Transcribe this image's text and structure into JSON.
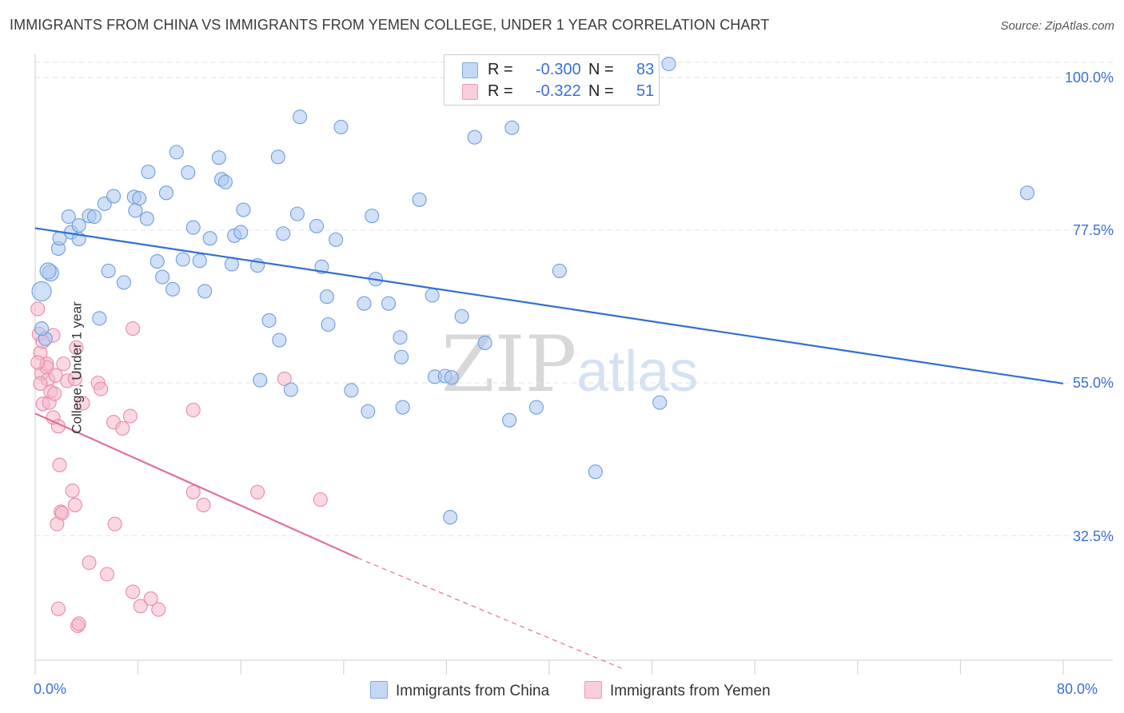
{
  "title": "IMMIGRANTS FROM CHINA VS IMMIGRANTS FROM YEMEN COLLEGE, UNDER 1 YEAR CORRELATION CHART",
  "source": "Source: ZipAtlas.com",
  "watermark": {
    "zip": "ZIP",
    "atlas": "atlas"
  },
  "legend": {
    "china": {
      "r_label": "R =",
      "r_value": "-0.300",
      "n_label": "N =",
      "n_value": "83"
    },
    "yemen": {
      "r_label": "R =",
      "r_value": "-0.322",
      "n_label": "N =",
      "n_value": "51"
    }
  },
  "colors": {
    "china": "#a9c6ee",
    "china_line": "#2f6fd3",
    "yemen": "#f4b8c9",
    "yemen_line": "#e0709a",
    "tick_text": "#3a6fd8"
  },
  "chart_data": {
    "type": "scatter",
    "title": "IMMIGRANTS FROM CHINA VS IMMIGRANTS FROM YEMEN COLLEGE, UNDER 1 YEAR CORRELATION CHART",
    "xlabel": "",
    "ylabel": "College, Under 1 year",
    "xlim": [
      0,
      80
    ],
    "ylim": [
      13,
      103
    ],
    "x_tick_labels": [
      "0.0%",
      "80.0%"
    ],
    "y_tick_labels": [
      "100.0%",
      "77.5%",
      "55.0%",
      "32.5%"
    ],
    "y_tick_values": [
      100,
      77.5,
      55,
      32.5
    ],
    "grid": true,
    "legend_position": "top-center",
    "series": [
      {
        "name": "Immigrants from China",
        "trend": {
          "x": [
            0,
            80
          ],
          "y": [
            77.8,
            54.9
          ]
        },
        "points": [
          [
            0.5,
            68.5
          ],
          [
            1.2,
            71.2
          ],
          [
            1.0,
            71.5
          ],
          [
            0.8,
            61.5
          ],
          [
            0.5,
            63.0
          ],
          [
            1.8,
            74.8
          ],
          [
            1.9,
            76.3
          ],
          [
            2.6,
            79.5
          ],
          [
            2.8,
            77.2
          ],
          [
            3.4,
            78.2
          ],
          [
            3.4,
            76.2
          ],
          [
            4.2,
            79.6
          ],
          [
            4.6,
            79.5
          ],
          [
            5.4,
            81.4
          ],
          [
            6.1,
            82.5
          ],
          [
            5.0,
            64.5
          ],
          [
            5.7,
            71.5
          ],
          [
            6.9,
            69.8
          ],
          [
            7.8,
            80.4
          ],
          [
            7.7,
            82.4
          ],
          [
            8.1,
            82.2
          ],
          [
            8.7,
            79.2
          ],
          [
            8.8,
            86.1
          ],
          [
            9.5,
            72.9
          ],
          [
            9.9,
            70.6
          ],
          [
            10.2,
            83.0
          ],
          [
            10.7,
            68.8
          ],
          [
            11.0,
            89.0
          ],
          [
            11.5,
            73.2
          ],
          [
            11.9,
            86.0
          ],
          [
            12.3,
            77.9
          ],
          [
            12.8,
            73.0
          ],
          [
            13.2,
            68.5
          ],
          [
            13.6,
            76.3
          ],
          [
            14.3,
            88.2
          ],
          [
            14.5,
            85.0
          ],
          [
            14.8,
            84.6
          ],
          [
            15.3,
            72.5
          ],
          [
            15.5,
            76.7
          ],
          [
            16.0,
            77.2
          ],
          [
            16.2,
            80.5
          ],
          [
            17.3,
            72.3
          ],
          [
            17.5,
            55.4
          ],
          [
            18.2,
            64.2
          ],
          [
            18.9,
            88.3
          ],
          [
            19.0,
            61.3
          ],
          [
            19.3,
            77.0
          ],
          [
            19.9,
            54.0
          ],
          [
            20.6,
            94.2
          ],
          [
            20.4,
            79.9
          ],
          [
            21.9,
            78.1
          ],
          [
            22.3,
            72.1
          ],
          [
            22.7,
            67.7
          ],
          [
            22.8,
            63.6
          ],
          [
            23.4,
            76.1
          ],
          [
            23.8,
            92.7
          ],
          [
            24.6,
            53.9
          ],
          [
            25.6,
            66.7
          ],
          [
            25.9,
            50.8
          ],
          [
            26.2,
            79.6
          ],
          [
            26.5,
            70.3
          ],
          [
            27.5,
            66.7
          ],
          [
            28.4,
            61.7
          ],
          [
            28.5,
            58.8
          ],
          [
            28.6,
            51.4
          ],
          [
            29.9,
            82.0
          ],
          [
            30.9,
            67.9
          ],
          [
            31.1,
            55.9
          ],
          [
            31.9,
            56.0
          ],
          [
            32.3,
            35.2
          ],
          [
            32.4,
            55.8
          ],
          [
            33.2,
            64.8
          ],
          [
            35.0,
            60.9
          ],
          [
            36.9,
            49.5
          ],
          [
            37.1,
            92.6
          ],
          [
            39.0,
            51.4
          ],
          [
            40.8,
            71.5
          ],
          [
            43.6,
            41.9
          ],
          [
            48.6,
            52.1
          ],
          [
            49.3,
            102.0
          ],
          [
            77.2,
            83.0
          ],
          [
            34.2,
            91.2
          ],
          [
            38.0,
            99.1
          ]
        ]
      },
      {
        "name": "Immigrants from Yemen",
        "trend_solid": {
          "x": [
            0,
            25.1
          ],
          "y": [
            50.5,
            29.2
          ]
        },
        "trend_dashed": {
          "x": [
            25.1,
            45.8
          ],
          "y": [
            29.2,
            12.8
          ]
        },
        "points": [
          [
            0.2,
            65.9
          ],
          [
            0.3,
            62.2
          ],
          [
            0.4,
            59.4
          ],
          [
            0.6,
            61.1
          ],
          [
            0.5,
            56.4
          ],
          [
            0.6,
            51.9
          ],
          [
            0.9,
            57.8
          ],
          [
            0.9,
            57.3
          ],
          [
            1.0,
            55.5
          ],
          [
            1.1,
            52.1
          ],
          [
            1.2,
            53.7
          ],
          [
            1.4,
            49.9
          ],
          [
            1.4,
            62.0
          ],
          [
            1.5,
            53.4
          ],
          [
            1.6,
            56.1
          ],
          [
            1.7,
            34.2
          ],
          [
            1.8,
            48.6
          ],
          [
            1.9,
            42.9
          ],
          [
            2.0,
            36.0
          ],
          [
            2.1,
            35.8
          ],
          [
            2.2,
            57.8
          ],
          [
            2.5,
            55.3
          ],
          [
            2.9,
            39.1
          ],
          [
            3.1,
            55.6
          ],
          [
            3.1,
            37.0
          ],
          [
            3.2,
            60.2
          ],
          [
            3.7,
            52.0
          ],
          [
            4.2,
            28.5
          ],
          [
            4.9,
            55.0
          ],
          [
            5.1,
            54.1
          ],
          [
            5.6,
            26.8
          ],
          [
            6.1,
            49.2
          ],
          [
            6.2,
            34.2
          ],
          [
            6.8,
            48.3
          ],
          [
            7.4,
            50.1
          ],
          [
            7.6,
            63.0
          ],
          [
            7.6,
            24.2
          ],
          [
            8.2,
            22.1
          ],
          [
            9.0,
            23.2
          ],
          [
            9.6,
            21.6
          ],
          [
            12.3,
            51.0
          ],
          [
            12.3,
            38.9
          ],
          [
            13.1,
            37.0
          ],
          [
            17.3,
            38.9
          ],
          [
            19.4,
            55.6
          ],
          [
            22.2,
            37.8
          ],
          [
            1.8,
            21.7
          ],
          [
            3.3,
            19.2
          ],
          [
            3.4,
            19.5
          ],
          [
            0.2,
            58.0
          ],
          [
            0.4,
            54.9
          ]
        ]
      }
    ]
  }
}
